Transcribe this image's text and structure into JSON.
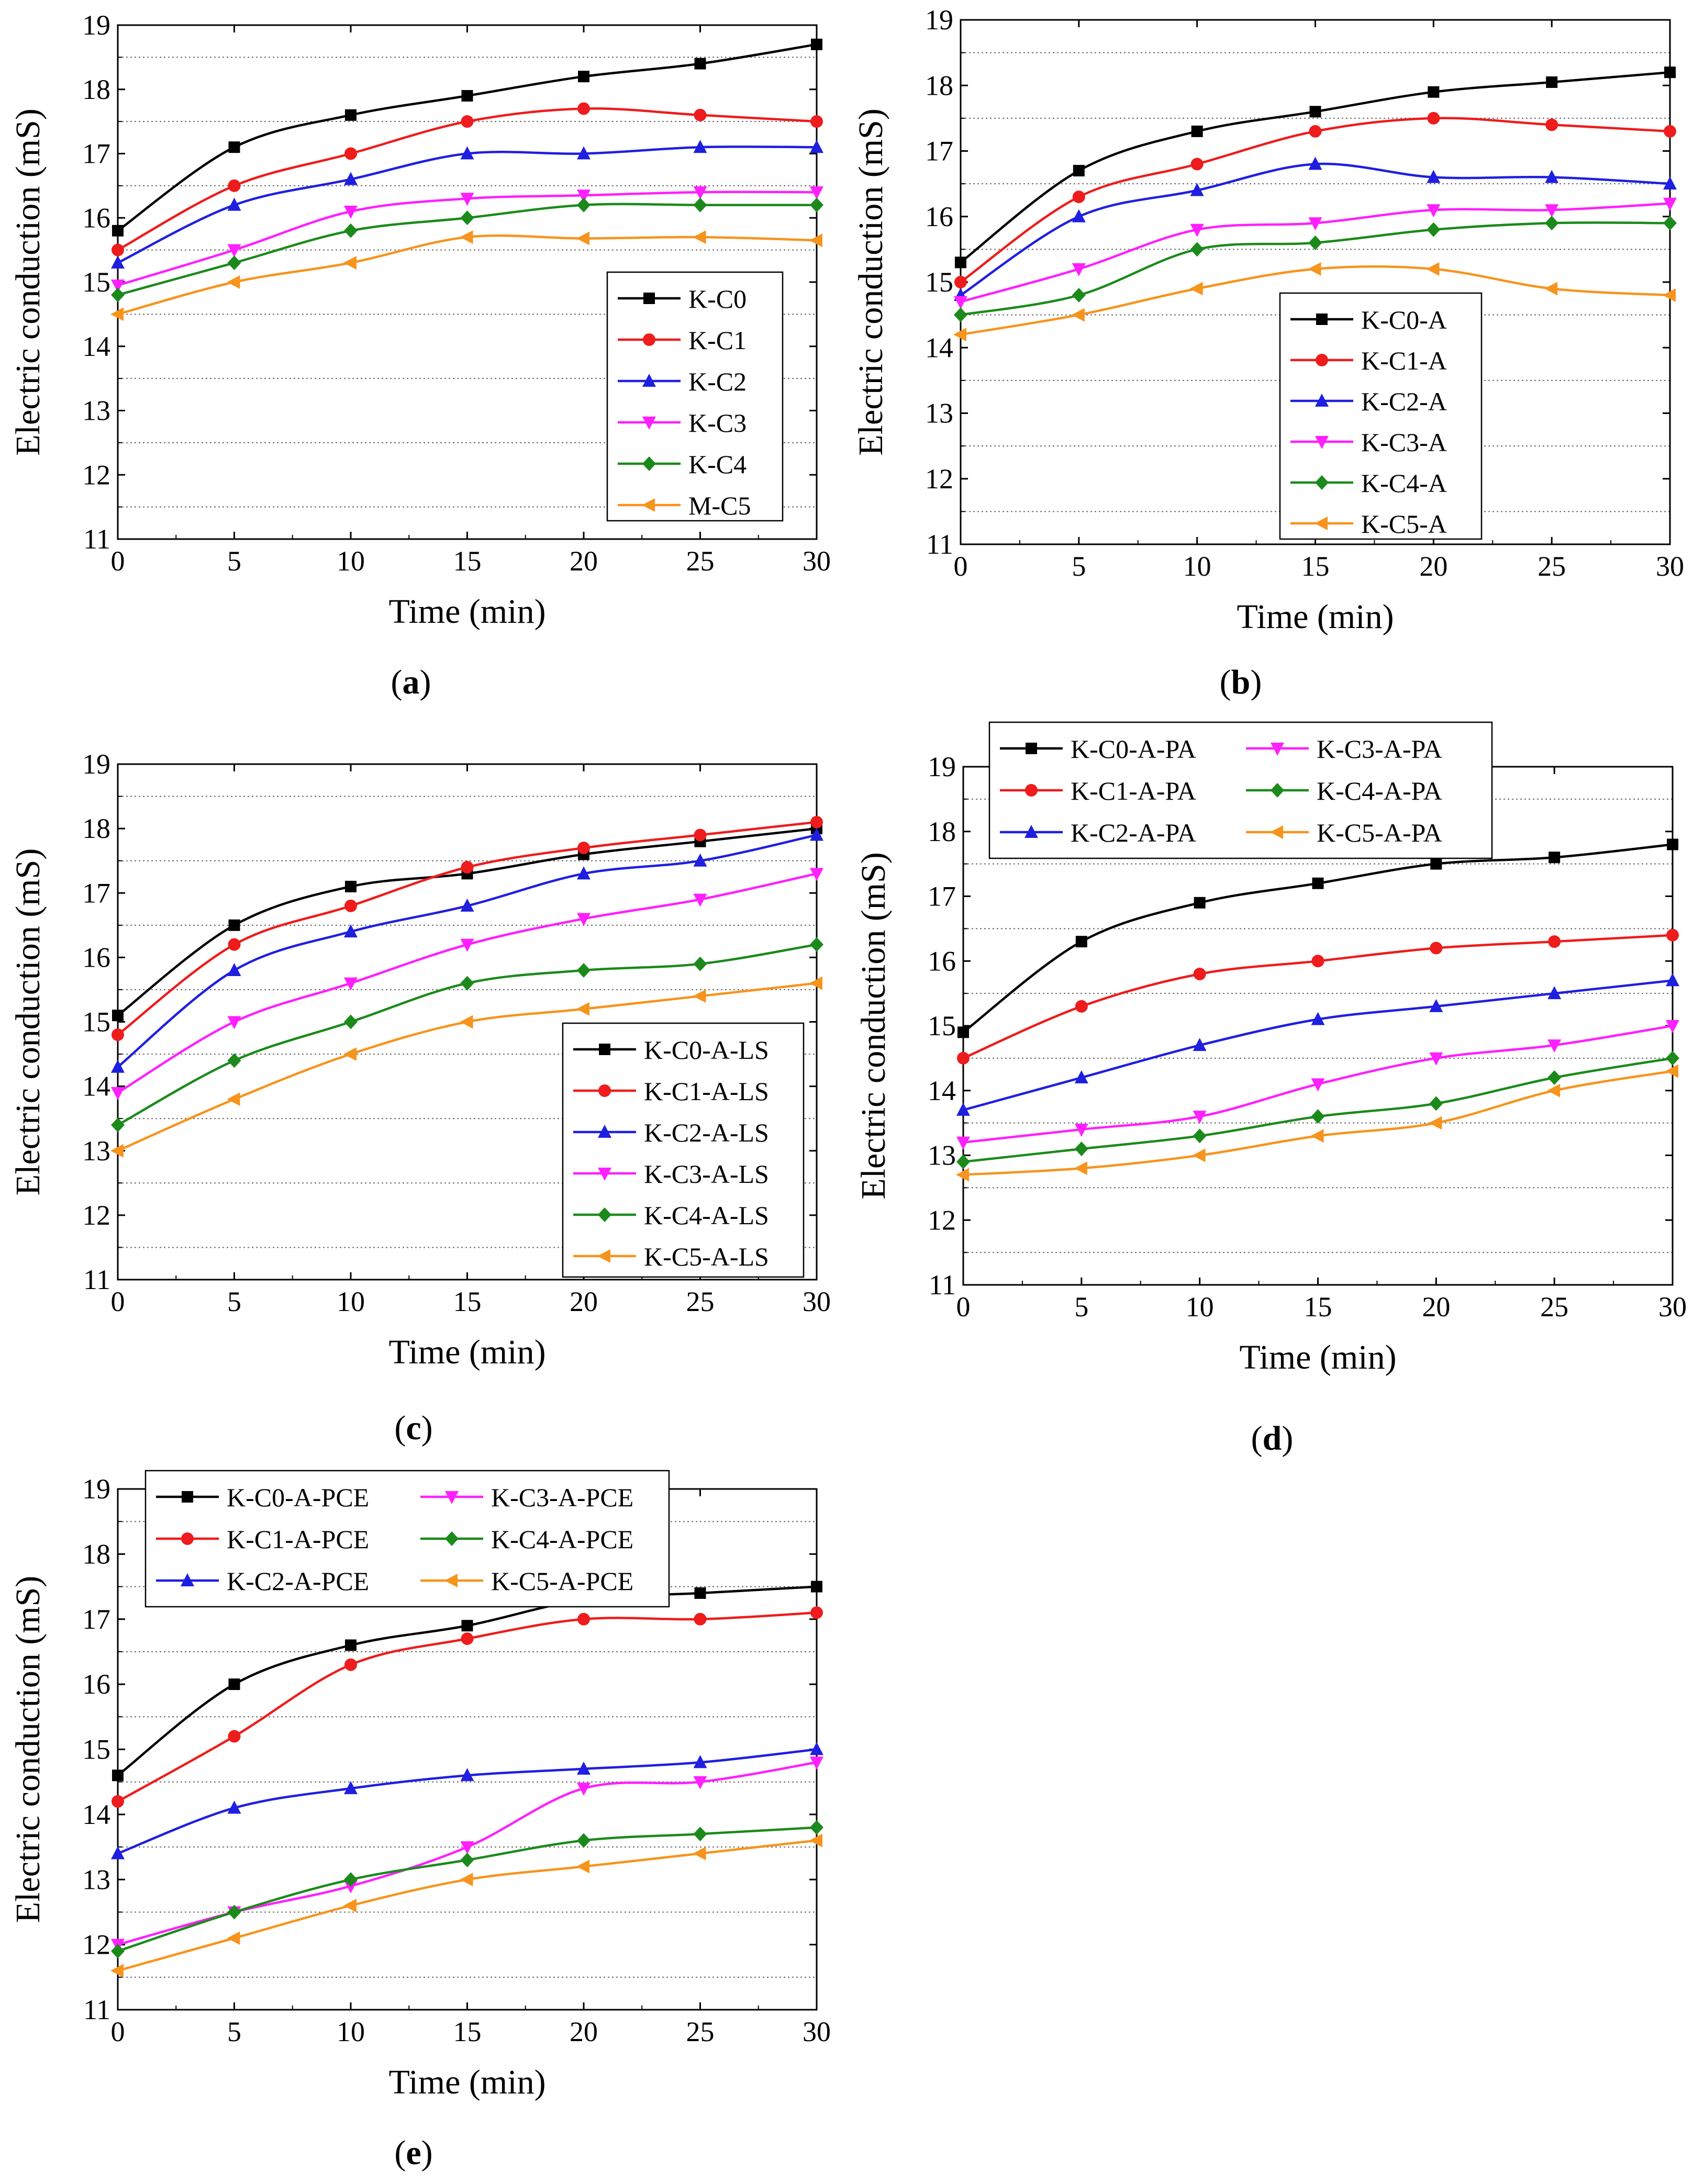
{
  "chart_data": [
    {
      "type": "line",
      "panel_label": "(a)",
      "xlabel": "Time (min)",
      "ylabel": "Electric conduction (mS)",
      "xlim": [
        0,
        30
      ],
      "ylim": [
        11,
        19
      ],
      "xticks": [
        0,
        5,
        10,
        15,
        20,
        25,
        30
      ],
      "yticks": [
        11,
        12,
        13,
        14,
        15,
        16,
        17,
        18,
        19
      ],
      "grid": "dotted horizontal at half units",
      "legend_position": "center-right",
      "legend_columns": 1,
      "x": [
        0,
        5,
        10,
        15,
        20,
        25,
        30
      ],
      "series": [
        {
          "name": "K-C0",
          "color": "#000000",
          "marker": "square",
          "values": [
            15.8,
            17.1,
            17.6,
            17.9,
            18.2,
            18.4,
            18.7
          ]
        },
        {
          "name": "K-C1",
          "color": "#ee1c1c",
          "marker": "circle",
          "values": [
            15.5,
            16.5,
            17.0,
            17.5,
            17.7,
            17.6,
            17.5
          ]
        },
        {
          "name": "K-C2",
          "color": "#1f1fe0",
          "marker": "triangle-up",
          "values": [
            15.3,
            16.2,
            16.6,
            17.0,
            17.0,
            17.1,
            17.1
          ]
        },
        {
          "name": "K-C3",
          "color": "#ff1fff",
          "marker": "triangle-down",
          "values": [
            14.95,
            15.5,
            16.1,
            16.3,
            16.35,
            16.4,
            16.4
          ]
        },
        {
          "name": "K-C4",
          "color": "#1b8a1b",
          "marker": "diamond",
          "values": [
            14.8,
            15.3,
            15.8,
            16.0,
            16.2,
            16.2,
            16.2
          ]
        },
        {
          "name": "M-C5",
          "color": "#f7941d",
          "marker": "triangle-left",
          "values": [
            14.5,
            15.0,
            15.3,
            15.7,
            15.68,
            15.7,
            15.65
          ]
        }
      ]
    },
    {
      "type": "line",
      "panel_label": "(b)",
      "xlabel": "Time (min)",
      "ylabel": "Electric conduction (mS)",
      "xlim": [
        0,
        30
      ],
      "ylim": [
        11,
        19
      ],
      "xticks": [
        0,
        5,
        10,
        15,
        20,
        25,
        30
      ],
      "yticks": [
        11,
        12,
        13,
        14,
        15,
        16,
        17,
        18,
        19
      ],
      "grid": "dotted horizontal at half units",
      "legend_position": "lower-center-right",
      "legend_columns": 1,
      "x": [
        0,
        5,
        10,
        15,
        20,
        25,
        30
      ],
      "series": [
        {
          "name": "K-C0-A",
          "color": "#000000",
          "marker": "square",
          "values": [
            15.3,
            16.7,
            17.3,
            17.6,
            17.9,
            18.05,
            18.2
          ]
        },
        {
          "name": "K-C1-A",
          "color": "#ee1c1c",
          "marker": "circle",
          "values": [
            15.0,
            16.3,
            16.8,
            17.3,
            17.5,
            17.4,
            17.3
          ]
        },
        {
          "name": "K-C2-A",
          "color": "#1f1fe0",
          "marker": "triangle-up",
          "values": [
            14.8,
            16.0,
            16.4,
            16.8,
            16.6,
            16.6,
            16.5
          ]
        },
        {
          "name": "K-C3-A",
          "color": "#ff1fff",
          "marker": "triangle-down",
          "values": [
            14.7,
            15.2,
            15.8,
            15.9,
            16.1,
            16.1,
            16.2
          ]
        },
        {
          "name": "K-C4-A",
          "color": "#1b8a1b",
          "marker": "diamond",
          "values": [
            14.5,
            14.8,
            15.5,
            15.6,
            15.8,
            15.9,
            15.9
          ]
        },
        {
          "name": "K-C5-A",
          "color": "#f7941d",
          "marker": "triangle-left",
          "values": [
            14.2,
            14.5,
            14.9,
            15.2,
            15.2,
            14.9,
            14.8
          ]
        }
      ]
    },
    {
      "type": "line",
      "panel_label": "(c)",
      "xlabel": "Time (min)",
      "ylabel": "Electric conduction (mS)",
      "xlim": [
        0,
        30
      ],
      "ylim": [
        11,
        19
      ],
      "xticks": [
        0,
        5,
        10,
        15,
        20,
        25,
        30
      ],
      "yticks": [
        11,
        12,
        13,
        14,
        15,
        16,
        17,
        18,
        19
      ],
      "grid": "dotted horizontal at half units",
      "legend_position": "bottom-right",
      "legend_columns": 1,
      "x": [
        0,
        5,
        10,
        15,
        20,
        25,
        30
      ],
      "series": [
        {
          "name": "K-C0-A-LS",
          "color": "#000000",
          "marker": "square",
          "values": [
            15.1,
            16.5,
            17.1,
            17.3,
            17.6,
            17.8,
            18.0
          ]
        },
        {
          "name": "K-C1-A-LS",
          "color": "#ee1c1c",
          "marker": "circle",
          "values": [
            14.8,
            16.2,
            16.8,
            17.4,
            17.7,
            17.9,
            18.1
          ]
        },
        {
          "name": "K-C2-A-LS",
          "color": "#1f1fe0",
          "marker": "triangle-up",
          "values": [
            14.3,
            15.8,
            16.4,
            16.8,
            17.3,
            17.5,
            17.9
          ]
        },
        {
          "name": "K-C3-A-LS",
          "color": "#ff1fff",
          "marker": "triangle-down",
          "values": [
            13.9,
            15.0,
            15.6,
            16.2,
            16.6,
            16.9,
            17.3
          ]
        },
        {
          "name": "K-C4-A-LS",
          "color": "#1b8a1b",
          "marker": "diamond",
          "values": [
            13.4,
            14.4,
            15.0,
            15.6,
            15.8,
            15.9,
            16.2
          ]
        },
        {
          "name": "K-C5-A-LS",
          "color": "#f7941d",
          "marker": "triangle-left",
          "values": [
            13.0,
            13.8,
            14.5,
            15.0,
            15.2,
            15.4,
            15.6
          ]
        }
      ]
    },
    {
      "type": "line",
      "panel_label": "(d)",
      "xlabel": "Time (min)",
      "ylabel": "Electric conduction (mS)",
      "xlim": [
        0,
        30
      ],
      "ylim": [
        11,
        19
      ],
      "xticks": [
        0,
        5,
        10,
        15,
        20,
        25,
        30
      ],
      "yticks": [
        11,
        12,
        13,
        14,
        15,
        16,
        17,
        18,
        19
      ],
      "grid": "dotted horizontal at half units",
      "legend_position": "top (above plot)",
      "legend_columns": 2,
      "x": [
        0,
        5,
        10,
        15,
        20,
        25,
        30
      ],
      "series": [
        {
          "name": "K-C0-A-PA",
          "color": "#000000",
          "marker": "square",
          "values": [
            14.9,
            16.3,
            16.9,
            17.2,
            17.5,
            17.6,
            17.8
          ]
        },
        {
          "name": "K-C1-A-PA",
          "color": "#ee1c1c",
          "marker": "circle",
          "values": [
            14.5,
            15.3,
            15.8,
            16.0,
            16.2,
            16.3,
            16.4
          ]
        },
        {
          "name": "K-C2-A-PA",
          "color": "#1f1fe0",
          "marker": "triangle-up",
          "values": [
            13.7,
            14.2,
            14.7,
            15.1,
            15.3,
            15.5,
            15.7
          ]
        },
        {
          "name": "K-C3-A-PA",
          "color": "#ff1fff",
          "marker": "triangle-down",
          "values": [
            13.2,
            13.4,
            13.6,
            14.1,
            14.5,
            14.7,
            15.0
          ]
        },
        {
          "name": "K-C4-A-PA",
          "color": "#1b8a1b",
          "marker": "diamond",
          "values": [
            12.9,
            13.1,
            13.3,
            13.6,
            13.8,
            14.2,
            14.5
          ]
        },
        {
          "name": "K-C5-A-PA",
          "color": "#f7941d",
          "marker": "triangle-left",
          "values": [
            12.7,
            12.8,
            13.0,
            13.3,
            13.5,
            14.0,
            14.3
          ]
        }
      ]
    },
    {
      "type": "line",
      "panel_label": "(e)",
      "xlabel": "Time (min)",
      "ylabel": "Electric conduction (mS)",
      "xlim": [
        0,
        30
      ],
      "ylim": [
        11,
        19
      ],
      "xticks": [
        0,
        5,
        10,
        15,
        20,
        25,
        30
      ],
      "yticks": [
        11,
        12,
        13,
        14,
        15,
        16,
        17,
        18,
        19
      ],
      "grid": "dotted horizontal at half units",
      "legend_position": "top-left",
      "legend_columns": 2,
      "x": [
        0,
        5,
        10,
        15,
        20,
        25,
        30
      ],
      "series": [
        {
          "name": "K-C0-A-PCE",
          "color": "#000000",
          "marker": "square",
          "values": [
            14.6,
            16.0,
            16.6,
            16.9,
            17.3,
            17.4,
            17.5
          ]
        },
        {
          "name": "K-C1-A-PCE",
          "color": "#ee1c1c",
          "marker": "circle",
          "values": [
            14.2,
            15.2,
            16.3,
            16.7,
            17.0,
            17.0,
            17.1
          ]
        },
        {
          "name": "K-C2-A-PCE",
          "color": "#1f1fe0",
          "marker": "triangle-up",
          "values": [
            13.4,
            14.1,
            14.4,
            14.6,
            14.7,
            14.8,
            15.0
          ]
        },
        {
          "name": "K-C3-A-PCE",
          "color": "#ff1fff",
          "marker": "triangle-down",
          "values": [
            12.0,
            12.5,
            12.9,
            13.5,
            14.4,
            14.5,
            14.8
          ]
        },
        {
          "name": "K-C4-A-PCE",
          "color": "#1b8a1b",
          "marker": "diamond",
          "values": [
            11.9,
            12.5,
            13.0,
            13.3,
            13.6,
            13.7,
            13.8
          ]
        },
        {
          "name": "K-C5-A-PCE",
          "color": "#f7941d",
          "marker": "triangle-left",
          "values": [
            11.6,
            12.1,
            12.6,
            13.0,
            13.2,
            13.4,
            13.6
          ]
        }
      ]
    }
  ]
}
